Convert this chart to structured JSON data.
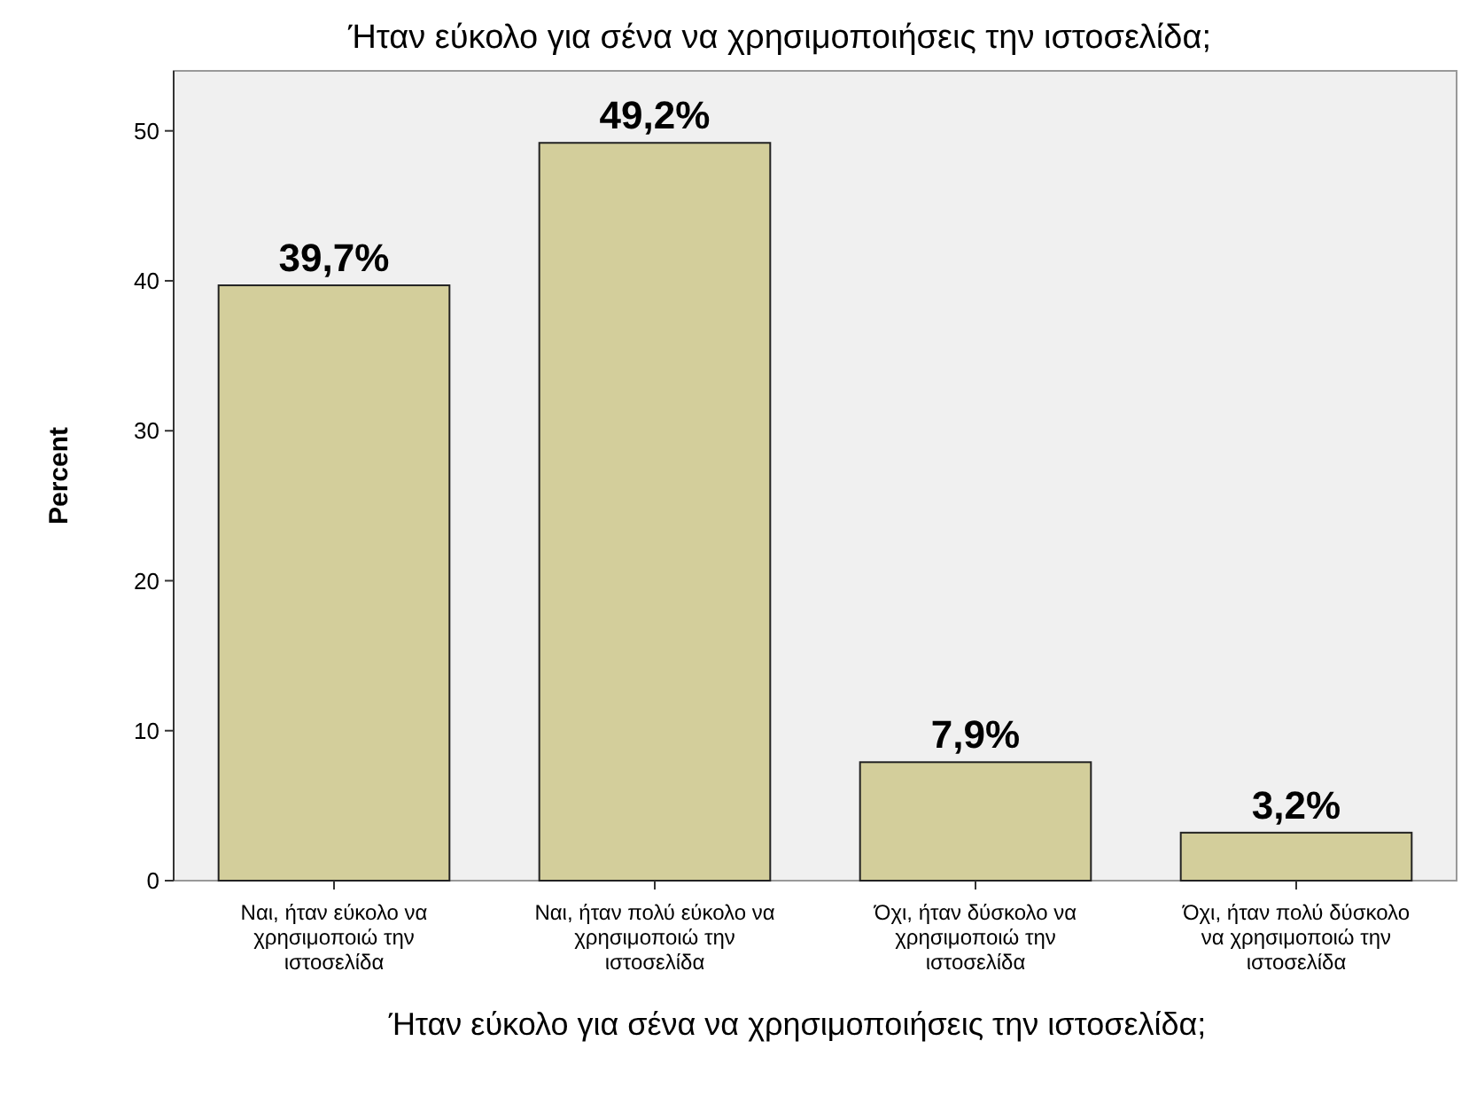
{
  "chart_data": {
    "type": "bar",
    "title": "Ήταν εύκολο για σένα να χρησιμοποιήσεις την ιστοσελίδα;",
    "xlabel": "Ήταν εύκολο για σένα να χρησιμοποιήσεις την ιστοσελίδα;",
    "ylabel": "Percent",
    "categories": [
      "Ναι, ήταν εύκολο να χρησιμοποιώ την ιστοσελίδα",
      "Ναι, ήταν πολύ εύκολο να χρησιμοποιώ την ιστοσελίδα",
      "Όχι, ήταν δύσκολο να χρησιμοποιώ την ιστοσελίδα",
      "Όχι, ήταν πολύ δύσκολο να χρησιμοποιώ την ιστοσελίδα"
    ],
    "values": [
      39.7,
      49.2,
      7.9,
      3.2
    ],
    "value_labels": [
      "39,7%",
      "49,2%",
      "7,9%",
      "3,2%"
    ],
    "color": "#d3ce9b",
    "ylim": [
      0,
      54
    ],
    "yticks": [
      0,
      10,
      20,
      30,
      40,
      50
    ],
    "grid": false
  }
}
